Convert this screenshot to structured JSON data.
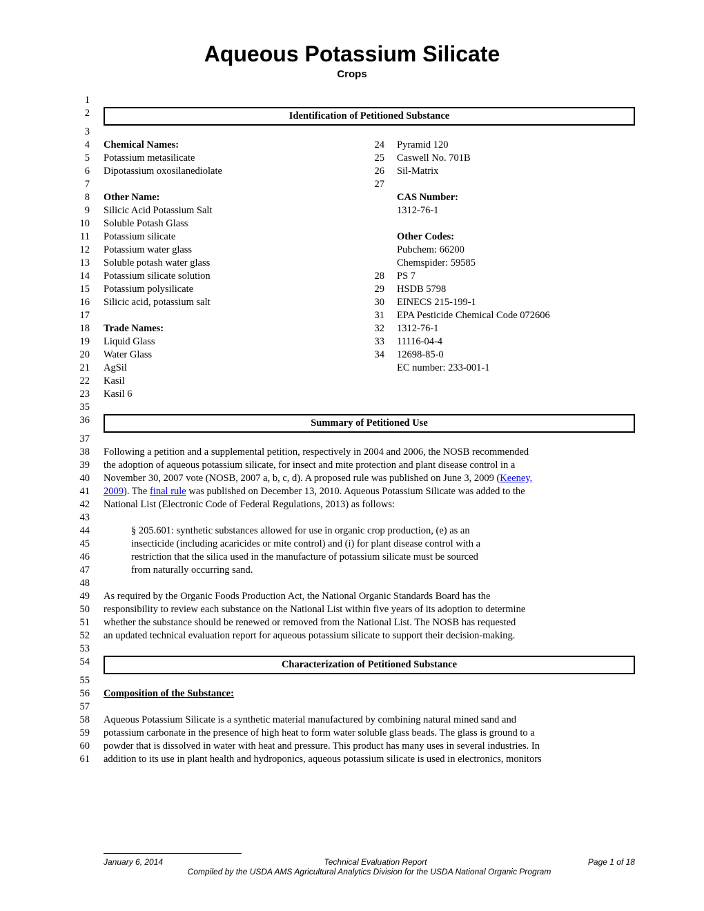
{
  "title": "Aqueous Potassium Silicate",
  "subtitle": "Crops",
  "sections": {
    "identification": "Identification of Petitioned Substance",
    "summary": "Summary of Petitioned Use",
    "characterization": "Characterization of Petitioned Substance"
  },
  "left_col": {
    "chemical_names_hdr": "Chemical Names:",
    "chem1": "Potassium metasilicate",
    "chem2": "Dipotassium oxosilanediolate",
    "other_name_hdr": "Other Name:",
    "on1": "Silicic Acid Potassium Salt",
    "on2": "Soluble Potash Glass",
    "on3": "Potassium silicate",
    "on4": "Potassium water glass",
    "on5": "Soluble potash water glass",
    "on6": "Potassium silicate solution",
    "on7": "Potassium polysilicate",
    "on8": "Silicic acid, potassium salt",
    "trade_hdr": "Trade Names:",
    "tn1": "Liquid Glass",
    "tn2": "Water Glass",
    "tn3": "AgSil",
    "tn4": "Kasil",
    "tn5": "Kasil 6"
  },
  "right_col": {
    "r24": "Pyramid 120",
    "r25": "Caswell No. 701B",
    "r26": "Sil-Matrix",
    "cas_hdr": "CAS Number:",
    "cas1": "1312-76-1",
    "codes_hdr": "Other Codes:",
    "oc1": "Pubchem: 66200",
    "oc2": "Chemspider: 59585",
    "r28": "PS 7",
    "r29": "HSDB 5798",
    "r30": "EINECS 215-199-1",
    "r31": "EPA Pesticide Chemical Code 072606",
    "r32": "1312-76-1",
    "r33": "11116-04-4",
    "r34": "12698-85-0",
    "ec": "EC number: 233-001-1"
  },
  "summary_text": {
    "l38": "Following a petition and a supplemental petition, respectively in 2004 and 2006, the NOSB recommended",
    "l39": "the adoption of aqueous potassium silicate, for insect and mite protection and plant disease control in a",
    "l40a": "November 30, 2007 vote (NOSB, 2007 a, b, c, d). A proposed rule was published on June 3, 2009 (",
    "l40b": "Keeney,",
    "l41a": "2009",
    "l41b": "). The ",
    "l41c": "final rule",
    "l41d": " was published on December 13, 2010. Aqueous Potassium Silicate was added to the",
    "l42": "National List (Electronic Code of Federal Regulations, 2013) as follows:",
    "l44": "§ 205.601: synthetic substances allowed for use in organic crop production, (e) as an",
    "l45": "insecticide (including acaricides or mite control) and (i) for plant disease control with a",
    "l46": "restriction that the silica used in the manufacture of potassium silicate must be sourced",
    "l47": "from naturally occurring sand.",
    "l49": "As required by the Organic Foods Production Act, the National Organic Standards Board has the",
    "l50": "responsibility to review each substance on the National List within five years of its adoption to determine",
    "l51": "whether the substance should be renewed or removed from the National List. The NOSB has requested",
    "l52": "an updated technical evaluation report for aqueous potassium silicate to support their decision-making."
  },
  "composition_hdr": "Composition of the Substance:",
  "comp_text": {
    "l58": "Aqueous Potassium Silicate is a synthetic material manufactured by combining natural mined sand and",
    "l59": "potassium carbonate in the presence of high heat to form water soluble glass beads. The glass is ground to a",
    "l60": "powder that is dissolved in water with heat and pressure. This product has many uses in several industries. In",
    "l61": "addition to its use in plant health and hydroponics, aqueous potassium silicate is used in electronics, monitors"
  },
  "footer": {
    "date": "January 6, 2014",
    "center": "Technical Evaluation Report",
    "page": "Page 1 of 18",
    "sub": "Compiled by the USDA AMS Agricultural Analytics Division for the USDA National Organic Program"
  },
  "line_nums": {
    "n1": "1",
    "n2": "2",
    "n3": "3",
    "n4": "4",
    "n5": "5",
    "n6": "6",
    "n7": "7",
    "n8": "8",
    "n9": "9",
    "n10": "10",
    "n11": "11",
    "n12": "12",
    "n13": "13",
    "n14": "14",
    "n15": "15",
    "n16": "16",
    "n17": "17",
    "n18": "18",
    "n19": "19",
    "n20": "20",
    "n21": "21",
    "n22": "22",
    "n23": "23",
    "n24": "24",
    "n25": "25",
    "n26": "26",
    "n27": "27",
    "n28": "28",
    "n29": "29",
    "n30": "30",
    "n31": "31",
    "n32": "32",
    "n33": "33",
    "n34": "34",
    "n35": "35",
    "n36": "36",
    "n37": "37",
    "n38": "38",
    "n39": "39",
    "n40": "40",
    "n41": "41",
    "n42": "42",
    "n43": "43",
    "n44": "44",
    "n45": "45",
    "n46": "46",
    "n47": "47",
    "n48": "48",
    "n49": "49",
    "n50": "50",
    "n51": "51",
    "n52": "52",
    "n53": "53",
    "n54": "54",
    "n55": "55",
    "n56": "56",
    "n57": "57",
    "n58": "58",
    "n59": "59",
    "n60": "60",
    "n61": "61"
  }
}
